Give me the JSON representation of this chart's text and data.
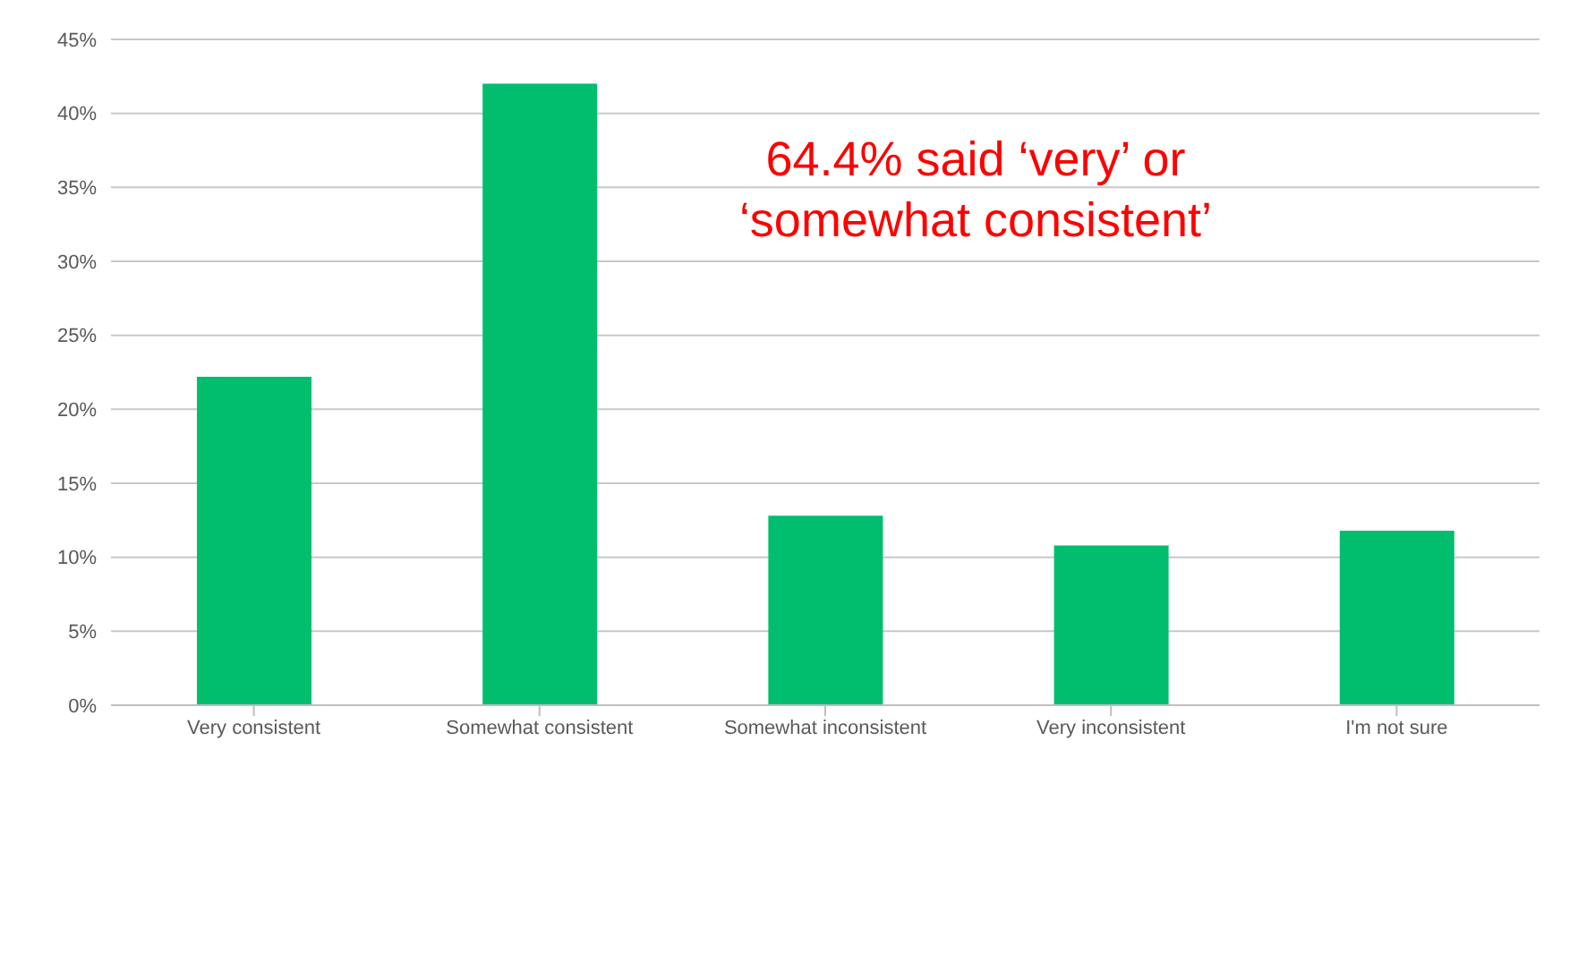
{
  "chart_data": {
    "type": "bar",
    "categories": [
      "Very consistent",
      "Somewhat consistent",
      "Somewhat inconsistent",
      "Very inconsistent",
      "I'm not sure"
    ],
    "values": [
      22.2,
      42.0,
      12.8,
      10.8,
      11.8
    ],
    "color": "#00be6e",
    "ylim": [
      0,
      45
    ],
    "yticks": [
      {
        "value": 0,
        "label": "0%"
      },
      {
        "value": 5,
        "label": "5%"
      },
      {
        "value": 10,
        "label": "10%"
      },
      {
        "value": 15,
        "label": "15%"
      },
      {
        "value": 20,
        "label": "20%"
      },
      {
        "value": 25,
        "label": "25%"
      },
      {
        "value": 30,
        "label": "30%"
      },
      {
        "value": 35,
        "label": "35%"
      },
      {
        "value": 40,
        "label": "40%"
      },
      {
        "value": 45,
        "label": "45%"
      }
    ],
    "grid": "y",
    "annotations": [
      "64.4% said ‘very’ or ‘somewhat consistent’"
    ]
  }
}
